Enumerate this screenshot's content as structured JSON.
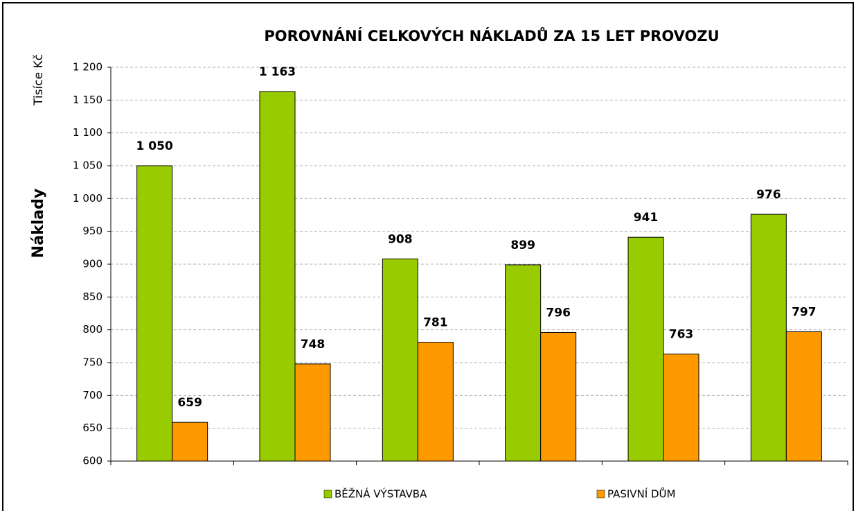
{
  "chart_data": {
    "type": "bar",
    "title": "POROVNÁNÍ CELKOVÝCH NÁKLADŮ ZA 15 LET PROVOZU",
    "unit_label": "Tisíce Kč",
    "y_label": "Náklady",
    "categories": [
      null,
      null,
      null,
      null,
      null,
      null
    ],
    "series": [
      {
        "name": "BĚŽNÁ VÝSTAVBA",
        "color": "#99cc00",
        "values": [
          1050,
          1163,
          908,
          899,
          941,
          976
        ],
        "value_labels": [
          "1 050",
          "1 163",
          "908",
          "899",
          "941",
          "976"
        ]
      },
      {
        "name": "PASIVNÍ DŮM",
        "color": "#ff9900",
        "values": [
          659,
          748,
          781,
          796,
          763,
          797
        ],
        "value_labels": [
          "659",
          "748",
          "781",
          "796",
          "763",
          "797"
        ]
      }
    ],
    "ylim": [
      600,
      1200
    ],
    "yticks": [
      600,
      650,
      700,
      750,
      800,
      850,
      900,
      950,
      {
        "value": 1000,
        "label": "1 000"
      },
      {
        "value": 1050,
        "label": "1 050"
      },
      {
        "value": 1100,
        "label": "1 100"
      },
      {
        "value": 1150,
        "label": "1 150"
      },
      {
        "value": 1200,
        "label": "1 200"
      }
    ],
    "grid": true
  }
}
